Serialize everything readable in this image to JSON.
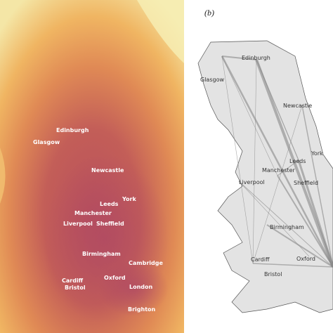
{
  "panel_b_label": "(b)",
  "map_a": {
    "cities": [
      "Edinburgh",
      "Glasgow",
      "Newcastle",
      "York",
      "Leeds",
      "Manchester",
      "Liverpool",
      "Sheffield",
      "Birmingham",
      "Cambridge",
      "Oxford",
      "Cardiff",
      "Bristol",
      "London",
      "Brighton"
    ]
  },
  "map_b": {
    "cities": [
      "Glasgow",
      "Edinburgh",
      "Newcastle",
      "York",
      "Leeds",
      "Manchester",
      "Liverpool",
      "Sheffield",
      "Birmingham",
      "Oxford",
      "Cardiff",
      "Bristol"
    ]
  }
}
